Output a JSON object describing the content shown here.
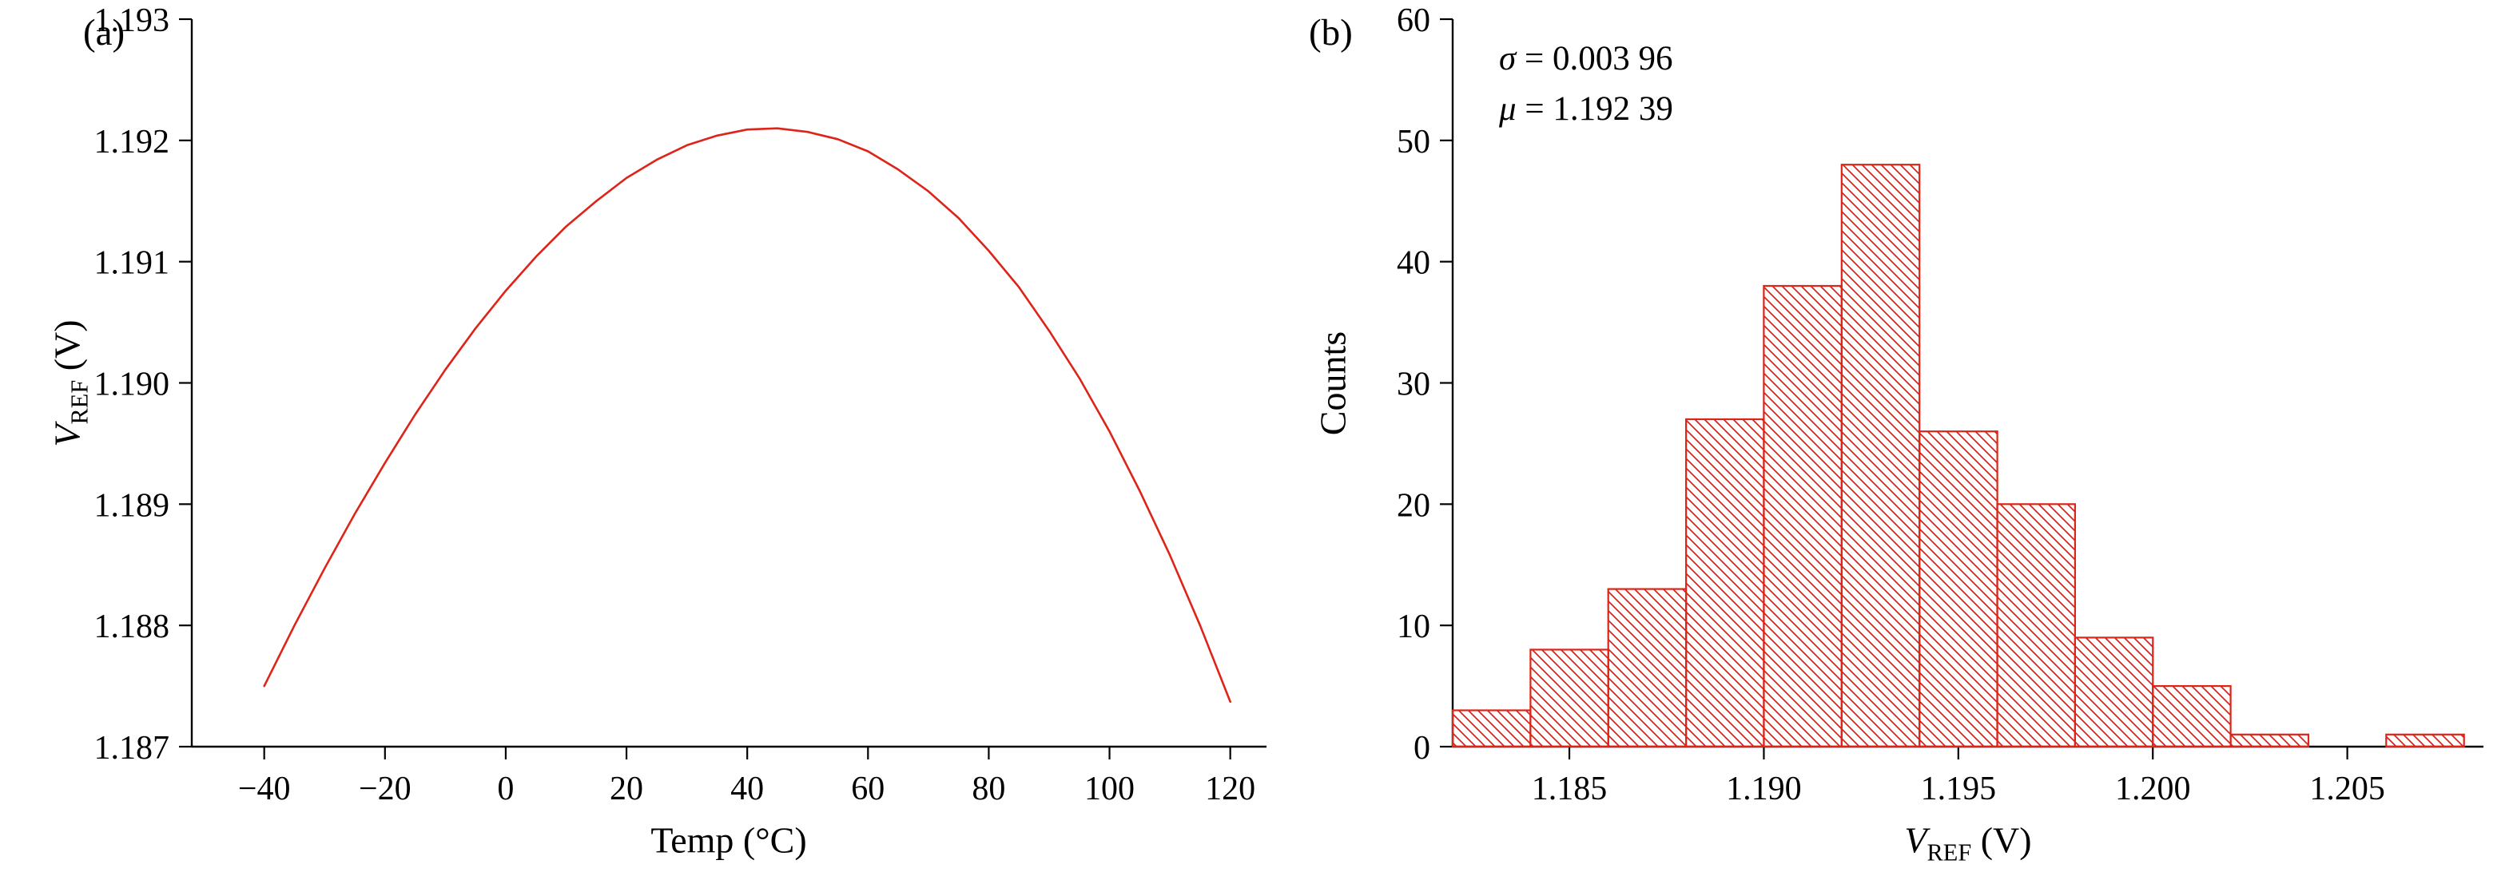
{
  "panels": {
    "a": {
      "label": "(a)"
    },
    "b": {
      "label": "(b)"
    }
  },
  "chart_data": [
    {
      "id": "vref-vs-temperature",
      "type": "line",
      "xlabel": "Temp (°C)",
      "ylabel": {
        "var": "V",
        "sub": "REF",
        "unit": " (V)"
      },
      "xlim": [
        -52,
        126
      ],
      "ylim": [
        1.187,
        1.193
      ],
      "xticks": [
        -40,
        -20,
        0,
        20,
        40,
        60,
        80,
        100,
        120
      ],
      "xtick_labels": [
        "−40",
        "−20",
        "0",
        "20",
        "40",
        "60",
        "80",
        "100",
        "120"
      ],
      "yticks": [
        1.187,
        1.188,
        1.189,
        1.19,
        1.191,
        1.192,
        1.193
      ],
      "ytick_labels": [
        "1.187",
        "1.188",
        "1.189",
        "1.190",
        "1.191",
        "1.192",
        "1.193"
      ],
      "line_color": "#de2418",
      "grid": false,
      "x": [
        -40,
        -35,
        -30,
        -25,
        -20,
        -15,
        -10,
        -5,
        0,
        5,
        10,
        15,
        20,
        25,
        30,
        35,
        40,
        45,
        50,
        55,
        60,
        65,
        70,
        75,
        80,
        85,
        90,
        95,
        100,
        105,
        110,
        115,
        120
      ],
      "y": [
        1.1875,
        1.188,
        1.18847,
        1.18892,
        1.18934,
        1.18974,
        1.19011,
        1.19045,
        1.19076,
        1.19104,
        1.19129,
        1.1915,
        1.19169,
        1.19184,
        1.19196,
        1.19204,
        1.19209,
        1.1921,
        1.19207,
        1.19201,
        1.19191,
        1.19176,
        1.19158,
        1.19136,
        1.19109,
        1.19079,
        1.19043,
        1.19004,
        1.1896,
        1.18911,
        1.18858,
        1.188,
        1.18737
      ]
    },
    {
      "id": "vref-histogram",
      "type": "histogram",
      "xlabel": {
        "var": "V",
        "sub": "REF",
        "unit": " (V)"
      },
      "ylabel": "Counts",
      "xlim": [
        1.182,
        1.2085
      ],
      "ylim": [
        0,
        60
      ],
      "xticks": [
        1.185,
        1.19,
        1.195,
        1.2,
        1.205
      ],
      "xtick_labels": [
        "1.185",
        "1.190",
        "1.195",
        "1.200",
        "1.205"
      ],
      "yticks": [
        0,
        10,
        20,
        30,
        40,
        50,
        60
      ],
      "ytick_labels": [
        "0",
        "10",
        "20",
        "30",
        "40",
        "50",
        "60"
      ],
      "bar_color": "#de2418",
      "grid": false,
      "bin_edges": [
        1.182,
        1.184,
        1.186,
        1.188,
        1.19,
        1.192,
        1.194,
        1.196,
        1.198,
        1.2,
        1.202,
        1.204,
        1.206,
        1.208
      ],
      "counts": [
        3,
        8,
        13,
        27,
        38,
        48,
        26,
        20,
        9,
        5,
        1,
        0,
        1
      ],
      "annotations": {
        "sigma": {
          "sym": "σ",
          "rest": " = 0.003 96"
        },
        "mu": {
          "sym": "μ",
          "rest": " = 1.192 39"
        }
      }
    }
  ]
}
